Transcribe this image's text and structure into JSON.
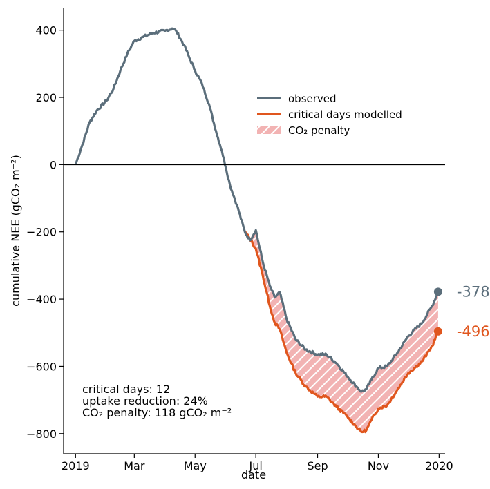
{
  "chart_data": {
    "type": "line",
    "xlabel": "date",
    "ylabel": "cumulative NEE (gCO₂ m⁻²)",
    "ylim": [
      -860,
      465
    ],
    "xlim": [
      "2018-12-20",
      "2020-01-07"
    ],
    "xticks": [
      {
        "date": "2019-01-01",
        "label": "2019"
      },
      {
        "date": "2019-03-01",
        "label": "Mar"
      },
      {
        "date": "2019-05-01",
        "label": "May"
      },
      {
        "date": "2019-07-01",
        "label": "Jul"
      },
      {
        "date": "2019-09-01",
        "label": "Sep"
      },
      {
        "date": "2019-11-01",
        "label": "Nov"
      },
      {
        "date": "2020-01-01",
        "label": "2020"
      }
    ],
    "yticks": [
      -800,
      -600,
      -400,
      -200,
      0,
      200,
      400
    ],
    "zero_line": true,
    "grid": false,
    "legend": {
      "position": "upper-right",
      "entries": [
        {
          "label": "observed",
          "color": "#5b6e7b",
          "kind": "line"
        },
        {
          "label": "critical days modelled",
          "color": "#e0561e",
          "kind": "line"
        },
        {
          "label": "CO₂ penalty",
          "color": "#f2b3b3",
          "kind": "hatch"
        }
      ]
    },
    "colors": {
      "observed": "#5b6e7b",
      "modelled": "#e0561e",
      "penalty_fill": "#f2b3b3"
    },
    "series": [
      {
        "name": "observed",
        "points": [
          [
            "2019-01-01",
            0
          ],
          [
            "2019-01-08",
            60
          ],
          [
            "2019-01-15",
            125
          ],
          [
            "2019-01-22",
            160
          ],
          [
            "2019-02-01",
            190
          ],
          [
            "2019-02-08",
            225
          ],
          [
            "2019-02-15",
            280
          ],
          [
            "2019-02-22",
            330
          ],
          [
            "2019-03-01",
            368
          ],
          [
            "2019-03-10",
            380
          ],
          [
            "2019-03-20",
            392
          ],
          [
            "2019-04-01",
            398
          ],
          [
            "2019-04-08",
            405
          ],
          [
            "2019-04-12",
            398
          ],
          [
            "2019-04-20",
            355
          ],
          [
            "2019-04-25",
            320
          ],
          [
            "2019-05-01",
            280
          ],
          [
            "2019-05-08",
            240
          ],
          [
            "2019-05-15",
            180
          ],
          [
            "2019-05-22",
            100
          ],
          [
            "2019-05-28",
            40
          ],
          [
            "2019-06-01",
            -10
          ],
          [
            "2019-06-05",
            -60
          ],
          [
            "2019-06-12",
            -120
          ],
          [
            "2019-06-20",
            -200
          ],
          [
            "2019-06-25",
            -225
          ],
          [
            "2019-07-01",
            -195
          ],
          [
            "2019-07-08",
            -290
          ],
          [
            "2019-07-15",
            -360
          ],
          [
            "2019-07-20",
            -395
          ],
          [
            "2019-07-25",
            -380
          ],
          [
            "2019-08-01",
            -460
          ],
          [
            "2019-08-10",
            -520
          ],
          [
            "2019-08-20",
            -550
          ],
          [
            "2019-09-01",
            -565
          ],
          [
            "2019-09-10",
            -565
          ],
          [
            "2019-09-20",
            -590
          ],
          [
            "2019-10-01",
            -630
          ],
          [
            "2019-10-10",
            -660
          ],
          [
            "2019-10-15",
            -675
          ],
          [
            "2019-10-20",
            -668
          ],
          [
            "2019-10-25",
            -640
          ],
          [
            "2019-11-01",
            -605
          ],
          [
            "2019-11-10",
            -600
          ],
          [
            "2019-11-20",
            -560
          ],
          [
            "2019-12-01",
            -510
          ],
          [
            "2019-12-15",
            -470
          ],
          [
            "2019-12-25",
            -420
          ],
          [
            "2019-12-31",
            -378
          ]
        ]
      },
      {
        "name": "critical days modelled",
        "points": [
          [
            "2019-06-20",
            -200
          ],
          [
            "2019-06-25",
            -220
          ],
          [
            "2019-07-01",
            -250
          ],
          [
            "2019-07-08",
            -330
          ],
          [
            "2019-07-15",
            -420
          ],
          [
            "2019-07-20",
            -470
          ],
          [
            "2019-07-25",
            -490
          ],
          [
            "2019-08-01",
            -560
          ],
          [
            "2019-08-10",
            -620
          ],
          [
            "2019-08-20",
            -660
          ],
          [
            "2019-09-01",
            -690
          ],
          [
            "2019-09-10",
            -690
          ],
          [
            "2019-09-20",
            -720
          ],
          [
            "2019-10-01",
            -750
          ],
          [
            "2019-10-10",
            -780
          ],
          [
            "2019-10-15",
            -795
          ],
          [
            "2019-10-20",
            -790
          ],
          [
            "2019-10-25",
            -760
          ],
          [
            "2019-11-01",
            -725
          ],
          [
            "2019-11-10",
            -715
          ],
          [
            "2019-11-20",
            -670
          ],
          [
            "2019-12-01",
            -620
          ],
          [
            "2019-12-15",
            -585
          ],
          [
            "2019-12-25",
            -540
          ],
          [
            "2019-12-31",
            -496
          ]
        ]
      }
    ],
    "end_labels": [
      {
        "series": "observed",
        "date": "2019-12-31",
        "value": -378,
        "text": "-378"
      },
      {
        "series": "critical days modelled",
        "date": "2019-12-31",
        "value": -496,
        "text": "-496"
      }
    ],
    "annotations": [
      "critical days: 12",
      "uptake reduction: 24%",
      "CO₂ penalty: 118 gCO₂ m⁻²"
    ]
  }
}
